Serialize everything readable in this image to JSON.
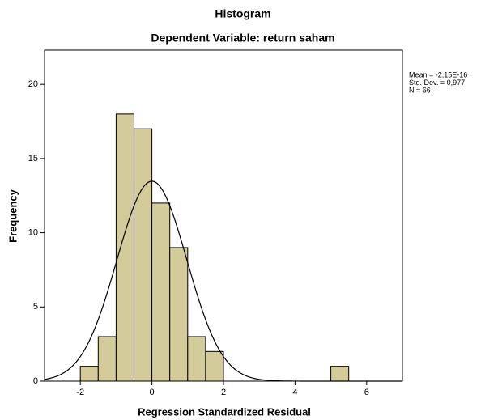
{
  "chart_data": {
    "type": "histogram",
    "title": "Histogram",
    "subtitle": "Dependent Variable: return saham",
    "x_label": "Regression Standardized Residual",
    "y_label": "Frequency",
    "bins": [
      -2,
      -1.5,
      -1,
      -0.5,
      0,
      0.5,
      1,
      1.5,
      2,
      2.5,
      3,
      3.5,
      4,
      4.5,
      5,
      5.5
    ],
    "values": [
      1,
      3,
      18,
      17,
      12,
      9,
      3,
      2,
      0,
      0,
      0,
      0,
      0,
      0,
      1
    ],
    "color": "#d4cb9b",
    "xlim": [
      -3,
      7
    ],
    "xticks": [
      -2,
      0,
      2,
      4,
      6
    ],
    "ylim": [
      0,
      22.3
    ],
    "yticks": [
      0,
      5,
      10,
      15,
      20
    ],
    "stats": [
      "Mean = -2,15E-16",
      "Std. Dev. = 0,977",
      "N = 66"
    ],
    "normal_curve": {
      "mean": 0,
      "sd": 0.977,
      "n": 66
    }
  }
}
